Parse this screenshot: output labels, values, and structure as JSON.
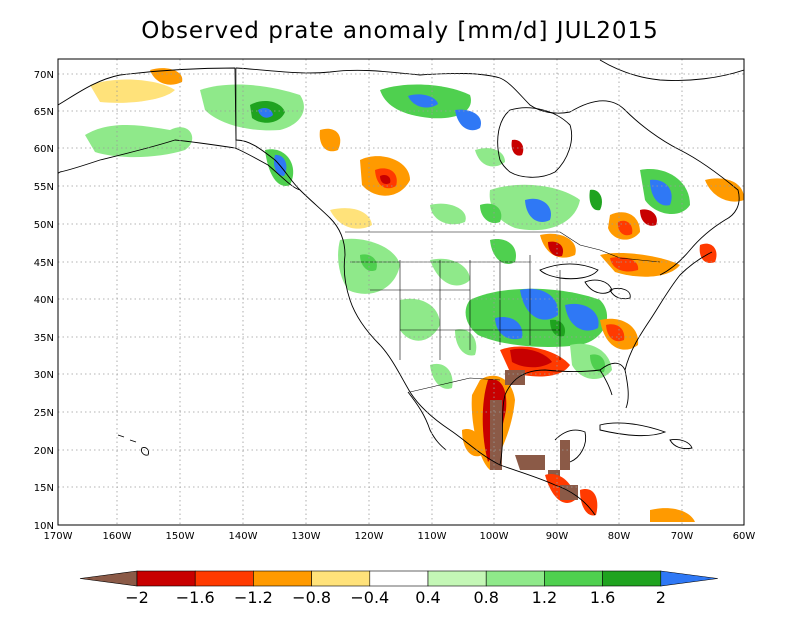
{
  "title": "Observed prate anomaly [mm/d] JUL2015",
  "lat_labels": [
    "70N",
    "65N",
    "60N",
    "55N",
    "50N",
    "45N",
    "40N",
    "35N",
    "30N",
    "25N",
    "20N",
    "15N",
    "10N"
  ],
  "lon_labels": [
    "170W",
    "160W",
    "150W",
    "140W",
    "130W",
    "120W",
    "110W",
    "100W",
    "90W",
    "80W",
    "70W",
    "60W"
  ],
  "colorbar": {
    "labels": [
      "−2",
      "−1.6",
      "−1.2",
      "−0.8",
      "−0.4",
      "0.4",
      "0.8",
      "1.2",
      "1.6",
      "2"
    ],
    "colors": [
      "#8b5a47",
      "#c80000",
      "#ff3a00",
      "#ff9a00",
      "#ffe27a",
      "#ffffff",
      "#c4f7b6",
      "#8fe98a",
      "#4fd04f",
      "#1fa31f",
      "#2f78f5"
    ]
  }
}
